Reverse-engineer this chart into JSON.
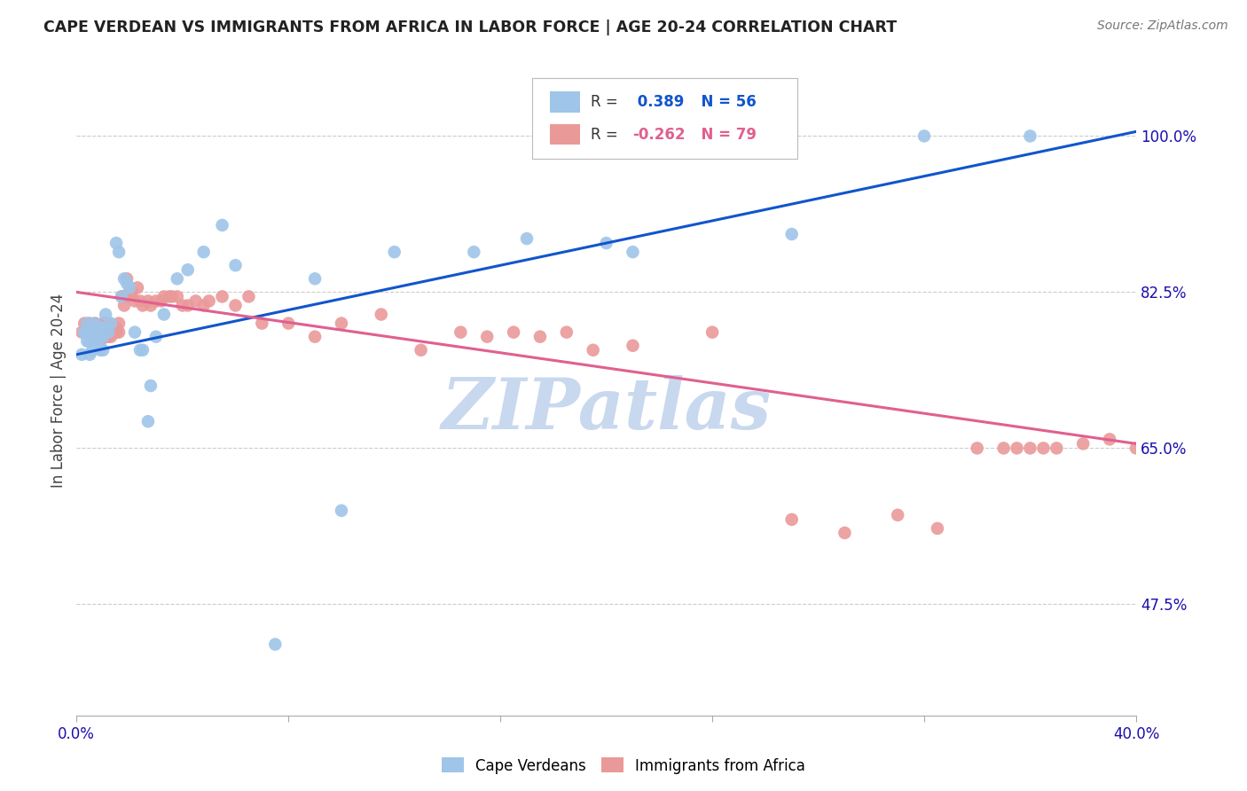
{
  "title": "CAPE VERDEAN VS IMMIGRANTS FROM AFRICA IN LABOR FORCE | AGE 20-24 CORRELATION CHART",
  "source": "Source: ZipAtlas.com",
  "ylabel": "In Labor Force | Age 20-24",
  "xlim": [
    0.0,
    0.4
  ],
  "ylim": [
    0.35,
    1.08
  ],
  "x_ticks": [
    0.0,
    0.08,
    0.16,
    0.24,
    0.32,
    0.4
  ],
  "x_tick_labels": [
    "0.0%",
    "",
    "",
    "",
    "",
    "40.0%"
  ],
  "y_ticks_right": [
    1.0,
    0.825,
    0.65,
    0.475
  ],
  "y_tick_labels_right": [
    "100.0%",
    "82.5%",
    "65.0%",
    "47.5%"
  ],
  "blue_R": 0.389,
  "blue_N": 56,
  "pink_R": -0.262,
  "pink_N": 79,
  "blue_color": "#9fc5e8",
  "pink_color": "#ea9999",
  "blue_line_color": "#1155cc",
  "pink_line_color": "#e06090",
  "watermark_text": "ZIPatlas",
  "watermark_color": "#c8d8ee",
  "blue_line_x0": 0.0,
  "blue_line_y0": 0.755,
  "blue_line_x1": 0.4,
  "blue_line_y1": 1.005,
  "pink_line_x0": 0.0,
  "pink_line_y0": 0.825,
  "pink_line_x1": 0.4,
  "pink_line_y1": 0.655,
  "blue_scatter_x": [
    0.002,
    0.003,
    0.003,
    0.004,
    0.004,
    0.004,
    0.005,
    0.005,
    0.005,
    0.006,
    0.006,
    0.006,
    0.007,
    0.007,
    0.007,
    0.008,
    0.008,
    0.008,
    0.009,
    0.009,
    0.01,
    0.01,
    0.01,
    0.011,
    0.011,
    0.012,
    0.013,
    0.015,
    0.016,
    0.017,
    0.018,
    0.019,
    0.02,
    0.022,
    0.024,
    0.025,
    0.027,
    0.028,
    0.03,
    0.033,
    0.038,
    0.042,
    0.048,
    0.055,
    0.06,
    0.075,
    0.09,
    0.1,
    0.12,
    0.15,
    0.17,
    0.2,
    0.21,
    0.27,
    0.32,
    0.36
  ],
  "blue_scatter_y": [
    0.755,
    0.78,
    0.78,
    0.77,
    0.78,
    0.79,
    0.755,
    0.77,
    0.775,
    0.76,
    0.775,
    0.785,
    0.77,
    0.775,
    0.79,
    0.77,
    0.775,
    0.785,
    0.76,
    0.775,
    0.76,
    0.775,
    0.785,
    0.785,
    0.8,
    0.78,
    0.79,
    0.88,
    0.87,
    0.82,
    0.84,
    0.835,
    0.83,
    0.78,
    0.76,
    0.76,
    0.68,
    0.72,
    0.775,
    0.8,
    0.84,
    0.85,
    0.87,
    0.9,
    0.855,
    0.43,
    0.84,
    0.58,
    0.87,
    0.87,
    0.885,
    0.88,
    0.87,
    0.89,
    1.0,
    1.0
  ],
  "pink_scatter_x": [
    0.002,
    0.003,
    0.004,
    0.005,
    0.005,
    0.006,
    0.006,
    0.007,
    0.007,
    0.008,
    0.008,
    0.009,
    0.009,
    0.01,
    0.01,
    0.011,
    0.011,
    0.012,
    0.012,
    0.013,
    0.013,
    0.014,
    0.015,
    0.015,
    0.016,
    0.016,
    0.017,
    0.018,
    0.018,
    0.019,
    0.02,
    0.021,
    0.022,
    0.023,
    0.024,
    0.025,
    0.027,
    0.028,
    0.03,
    0.032,
    0.033,
    0.035,
    0.036,
    0.038,
    0.04,
    0.042,
    0.045,
    0.048,
    0.05,
    0.055,
    0.06,
    0.065,
    0.07,
    0.08,
    0.09,
    0.1,
    0.115,
    0.13,
    0.145,
    0.155,
    0.165,
    0.175,
    0.185,
    0.195,
    0.21,
    0.24,
    0.27,
    0.29,
    0.31,
    0.325,
    0.34,
    0.35,
    0.355,
    0.36,
    0.365,
    0.37,
    0.38,
    0.39,
    0.4
  ],
  "pink_scatter_y": [
    0.78,
    0.79,
    0.78,
    0.77,
    0.79,
    0.775,
    0.785,
    0.775,
    0.79,
    0.775,
    0.785,
    0.77,
    0.785,
    0.775,
    0.79,
    0.775,
    0.79,
    0.775,
    0.79,
    0.775,
    0.785,
    0.78,
    0.78,
    0.785,
    0.78,
    0.79,
    0.82,
    0.81,
    0.82,
    0.84,
    0.825,
    0.825,
    0.815,
    0.83,
    0.815,
    0.81,
    0.815,
    0.81,
    0.815,
    0.815,
    0.82,
    0.82,
    0.82,
    0.82,
    0.81,
    0.81,
    0.815,
    0.81,
    0.815,
    0.82,
    0.81,
    0.82,
    0.79,
    0.79,
    0.775,
    0.79,
    0.8,
    0.76,
    0.78,
    0.775,
    0.78,
    0.775,
    0.78,
    0.76,
    0.765,
    0.78,
    0.57,
    0.555,
    0.575,
    0.56,
    0.65,
    0.65,
    0.65,
    0.65,
    0.65,
    0.65,
    0.655,
    0.66,
    0.65
  ]
}
